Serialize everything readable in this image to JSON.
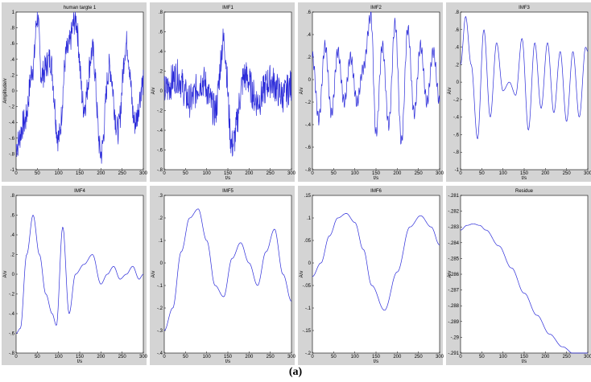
{
  "caption": "(a)",
  "chart_data": [
    {
      "type": "line",
      "title": "human targte 1",
      "xlabel": "",
      "ylabel": "Amplitude/v",
      "xlim": [
        0,
        300
      ],
      "ylim": [
        -1,
        1
      ],
      "xticks": [
        0,
        50,
        100,
        150,
        200,
        250,
        300
      ],
      "yticks": [
        -1,
        -0.8,
        -0.6,
        -0.4,
        -0.2,
        0,
        0.2,
        0.4,
        0.6,
        0.8,
        1
      ],
      "signal": "noisy",
      "x": [
        0,
        20,
        40,
        50,
        60,
        80,
        100,
        120,
        140,
        160,
        180,
        200,
        220,
        240,
        260,
        280,
        300
      ],
      "y": [
        -0.7,
        -0.4,
        0.3,
        0.95,
        0.2,
        0.4,
        -0.6,
        0.5,
        0.9,
        -0.2,
        0.5,
        -0.8,
        0.3,
        -0.5,
        0.6,
        -0.4,
        0.1
      ]
    },
    {
      "type": "line",
      "title": "IMF1",
      "xlabel": "t/s",
      "ylabel": "A/v",
      "xlim": [
        0,
        300
      ],
      "ylim": [
        -0.8,
        0.8
      ],
      "xticks": [
        0,
        50,
        100,
        150,
        200,
        250,
        300
      ],
      "yticks": [
        -0.8,
        -0.6,
        -0.4,
        -0.2,
        0,
        0.2,
        0.4,
        0.6,
        0.8
      ],
      "signal": "noisy",
      "x": [
        0,
        30,
        60,
        90,
        120,
        140,
        160,
        190,
        220,
        250,
        280,
        300
      ],
      "y": [
        0,
        0.15,
        -0.1,
        0.1,
        -0.2,
        0.5,
        -0.55,
        0.15,
        -0.1,
        0.1,
        -0.05,
        0.05
      ]
    },
    {
      "type": "line",
      "title": "IMF2",
      "xlabel": "t/s",
      "ylabel": "A/v",
      "xlim": [
        0,
        300
      ],
      "ylim": [
        -0.8,
        0.6
      ],
      "xticks": [
        0,
        50,
        100,
        150,
        200,
        250,
        300
      ],
      "yticks": [
        -0.8,
        -0.6,
        -0.4,
        -0.2,
        0,
        0.2,
        0.4,
        0.6
      ],
      "signal": "oscillating",
      "x": [
        0,
        15,
        30,
        45,
        60,
        75,
        90,
        105,
        120,
        138,
        150,
        165,
        180,
        195,
        210,
        225,
        240,
        255,
        270,
        285,
        300
      ],
      "y": [
        0.2,
        -0.35,
        0.3,
        -0.3,
        0.25,
        -0.2,
        0.2,
        -0.2,
        0.1,
        0.57,
        -0.48,
        0.3,
        -0.4,
        0.5,
        -0.55,
        0.45,
        -0.3,
        0.3,
        -0.2,
        0.25,
        -0.2
      ]
    },
    {
      "type": "line",
      "title": "IMF3",
      "xlabel": "t/s",
      "ylabel": "A/v",
      "xlim": [
        0,
        300
      ],
      "ylim": [
        -1,
        0.8
      ],
      "xticks": [
        0,
        50,
        100,
        150,
        200,
        250,
        300
      ],
      "yticks": [
        -1,
        -0.8,
        -0.6,
        -0.4,
        -0.2,
        0,
        0.2,
        0.4,
        0.6,
        0.8
      ],
      "signal": "smooth",
      "x": [
        0,
        12,
        25,
        40,
        55,
        70,
        85,
        100,
        115,
        130,
        145,
        160,
        175,
        190,
        205,
        220,
        235,
        250,
        265,
        280,
        295,
        300
      ],
      "y": [
        0.2,
        0.75,
        0.2,
        -0.65,
        0.6,
        -0.4,
        0.45,
        -0.1,
        0.0,
        -0.15,
        0.5,
        -0.55,
        0.45,
        -0.3,
        0.45,
        -0.35,
        0.35,
        -0.45,
        0.35,
        -0.4,
        0.4,
        0.35
      ]
    },
    {
      "type": "line",
      "title": "IMF4",
      "xlabel": "t/s",
      "ylabel": "A/v",
      "xlim": [
        0,
        300
      ],
      "ylim": [
        -0.8,
        0.8
      ],
      "xticks": [
        0,
        50,
        100,
        150,
        200,
        250,
        300
      ],
      "yticks": [
        -0.8,
        -0.6,
        -0.4,
        -0.2,
        0,
        0.2,
        0.4,
        0.6,
        0.8
      ],
      "signal": "smooth",
      "x": [
        0,
        10,
        25,
        40,
        55,
        70,
        85,
        95,
        110,
        125,
        140,
        160,
        180,
        200,
        215,
        230,
        245,
        260,
        275,
        290,
        300
      ],
      "y": [
        -0.6,
        -0.55,
        0.2,
        0.6,
        0.2,
        -0.2,
        -0.4,
        -0.52,
        0.48,
        -0.4,
        0.0,
        0.1,
        0.2,
        -0.1,
        0.0,
        0.08,
        -0.05,
        0.0,
        0.08,
        -0.05,
        0.0
      ]
    },
    {
      "type": "line",
      "title": "IMF5",
      "xlabel": "t/s",
      "ylabel": "A/v",
      "xlim": [
        0,
        300
      ],
      "ylim": [
        -0.4,
        0.3
      ],
      "xticks": [
        0,
        50,
        100,
        150,
        200,
        250,
        300
      ],
      "yticks": [
        -0.4,
        -0.3,
        -0.2,
        -0.1,
        0,
        0.1,
        0.2,
        0.3
      ],
      "signal": "smooth",
      "x": [
        0,
        20,
        40,
        60,
        80,
        100,
        120,
        140,
        160,
        180,
        200,
        220,
        240,
        260,
        280,
        300
      ],
      "y": [
        -0.3,
        -0.2,
        0.05,
        0.2,
        0.24,
        0.1,
        -0.1,
        -0.15,
        0.02,
        0.09,
        0.0,
        -0.1,
        0.05,
        0.15,
        -0.05,
        -0.17
      ]
    },
    {
      "type": "line",
      "title": "IMF6",
      "xlabel": "t/s",
      "ylabel": "A/v",
      "xlim": [
        0,
        300
      ],
      "ylim": [
        -0.2,
        0.15
      ],
      "xticks": [
        0,
        50,
        100,
        150,
        200,
        250,
        300
      ],
      "yticks": [
        -0.2,
        -0.15,
        -0.1,
        -0.05,
        0,
        0.05,
        0.1,
        0.15
      ],
      "signal": "smooth",
      "x": [
        0,
        20,
        40,
        60,
        80,
        100,
        120,
        140,
        170,
        200,
        230,
        255,
        280,
        300
      ],
      "y": [
        -0.03,
        0.0,
        0.06,
        0.1,
        0.11,
        0.09,
        0.03,
        -0.05,
        -0.105,
        -0.02,
        0.08,
        0.105,
        0.08,
        0.04
      ]
    },
    {
      "type": "line",
      "title": "Residue",
      "xlabel": "t/s",
      "ylabel": "A/v",
      "xlim": [
        0,
        300
      ],
      "ylim": [
        -0.291,
        -0.281
      ],
      "xticks": [
        0,
        50,
        100,
        150,
        200,
        250,
        300
      ],
      "yticks": [
        -0.291,
        -0.29,
        -0.289,
        -0.288,
        -0.287,
        -0.286,
        -0.285,
        -0.284,
        -0.283,
        -0.282,
        -0.281
      ],
      "signal": "smooth",
      "x": [
        0,
        15,
        30,
        45,
        60,
        90,
        120,
        150,
        180,
        210,
        240,
        270,
        300
      ],
      "y": [
        -0.2832,
        -0.2829,
        -0.2828,
        -0.2829,
        -0.2832,
        -0.2842,
        -0.2856,
        -0.2872,
        -0.2886,
        -0.2898,
        -0.2906,
        -0.2911,
        -0.2913
      ]
    }
  ]
}
